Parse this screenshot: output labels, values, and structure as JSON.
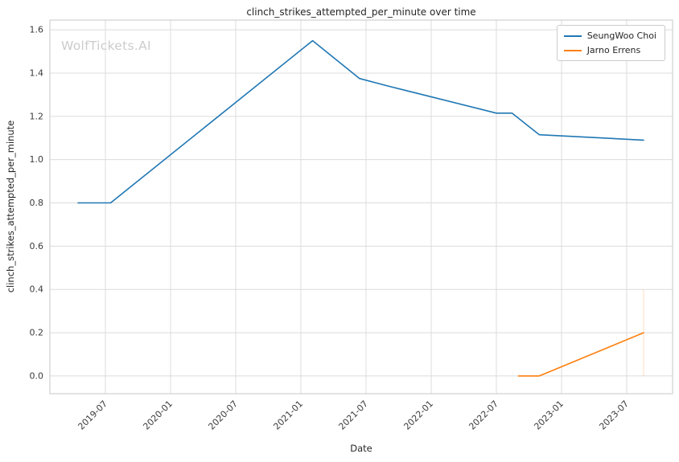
{
  "watermark": "WolfTickets.AI",
  "chart_data": {
    "type": "line",
    "title": "clinch_strikes_attempted_per_minute over time",
    "xlabel": "Date",
    "ylabel": "clinch_strikes_attempted_per_minute",
    "grid": true,
    "legend_position": "top-right",
    "xlim": [
      2019.074,
      2023.852
    ],
    "ylim": [
      -0.082,
      1.645
    ],
    "x_ticks": [
      {
        "label": "2019-07",
        "value": 2019.5
      },
      {
        "label": "2020-01",
        "value": 2020.0
      },
      {
        "label": "2020-07",
        "value": 2020.5
      },
      {
        "label": "2021-01",
        "value": 2021.0
      },
      {
        "label": "2021-07",
        "value": 2021.5
      },
      {
        "label": "2022-01",
        "value": 2022.0
      },
      {
        "label": "2022-07",
        "value": 2022.5
      },
      {
        "label": "2023-01",
        "value": 2023.0
      },
      {
        "label": "2023-07",
        "value": 2023.5
      }
    ],
    "y_ticks": [
      0.0,
      0.2,
      0.4,
      0.6,
      0.8,
      1.0,
      1.2,
      1.4,
      1.6
    ],
    "series": [
      {
        "name": "SeungWoo Choi",
        "color": "#1f77b4",
        "points": [
          [
            2019.29,
            0.8
          ],
          [
            2019.54,
            0.8
          ],
          [
            2021.09,
            1.55
          ],
          [
            2021.45,
            1.375
          ],
          [
            2021.67,
            1.34
          ],
          [
            2022.5,
            1.215
          ],
          [
            2022.62,
            1.215
          ],
          [
            2022.83,
            1.115
          ],
          [
            2023.63,
            1.09
          ]
        ]
      },
      {
        "name": "Jarno Errens",
        "color": "#ff7f0e",
        "points": [
          [
            2022.67,
            0.0
          ],
          [
            2022.83,
            0.0
          ],
          [
            2023.63,
            0.2
          ]
        ]
      }
    ],
    "annotations": [
      {
        "type": "vline",
        "x": 2023.63,
        "y0": 0.0,
        "y1": 0.4,
        "color": "#ff7f0e",
        "opacity": 0.25
      }
    ]
  }
}
